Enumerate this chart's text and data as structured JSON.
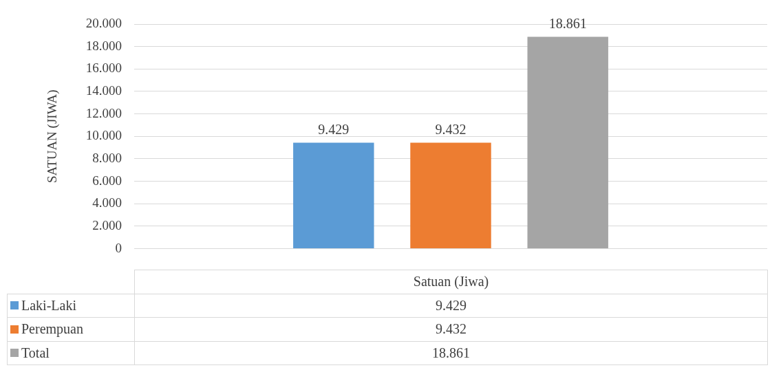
{
  "chart_data": {
    "type": "bar",
    "ylabel": "SATUAN (JIWA)",
    "categories": [
      "Satuan (Jiwa)"
    ],
    "series": [
      {
        "name": "Laki-Laki",
        "color": "#5b9bd5",
        "values": [
          9429
        ],
        "value_labels": [
          "9.429"
        ]
      },
      {
        "name": "Perempuan",
        "color": "#ed7d31",
        "values": [
          9432
        ],
        "value_labels": [
          "9.432"
        ]
      },
      {
        "name": "Total",
        "color": "#a5a5a5",
        "values": [
          18861
        ],
        "value_labels": [
          "18.861"
        ]
      }
    ],
    "ylim": [
      0,
      20000
    ],
    "yticks": [
      {
        "value": 0,
        "label": "0"
      },
      {
        "value": 2000,
        "label": "2.000"
      },
      {
        "value": 4000,
        "label": "4.000"
      },
      {
        "value": 6000,
        "label": "6.000"
      },
      {
        "value": 8000,
        "label": "8.000"
      },
      {
        "value": 10000,
        "label": "10.000"
      },
      {
        "value": 12000,
        "label": "12.000"
      },
      {
        "value": 14000,
        "label": "14.000"
      },
      {
        "value": 16000,
        "label": "16.000"
      },
      {
        "value": 18000,
        "label": "18.000"
      },
      {
        "value": 20000,
        "label": "20.000"
      }
    ],
    "grid": "y",
    "legend": "bottom"
  }
}
